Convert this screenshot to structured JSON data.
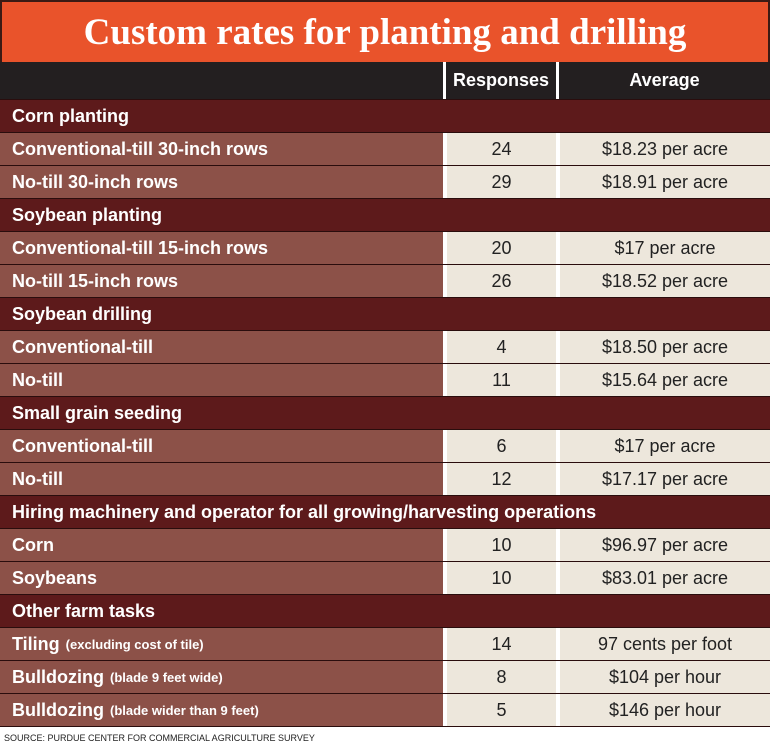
{
  "title": "Custom rates for planting and drilling",
  "header": {
    "responses": "Responses",
    "average": "Average"
  },
  "sections": [
    {
      "name": "Corn planting",
      "rows": [
        {
          "label": "Conventional-till 30-inch rows",
          "responses": 24,
          "average": "$18.23 per acre"
        },
        {
          "label": "No-till 30-inch rows",
          "responses": 29,
          "average": "$18.91 per acre"
        }
      ]
    },
    {
      "name": "Soybean planting",
      "rows": [
        {
          "label": "Conventional-till 15-inch rows",
          "responses": 20,
          "average": "$17 per acre"
        },
        {
          "label": "No-till 15-inch rows",
          "responses": 26,
          "average": "$18.52 per acre"
        }
      ]
    },
    {
      "name": "Soybean drilling",
      "rows": [
        {
          "label": "Conventional-till",
          "responses": 4,
          "average": "$18.50 per acre"
        },
        {
          "label": "No-till",
          "responses": 11,
          "average": "$15.64 per acre"
        }
      ]
    },
    {
      "name": "Small grain seeding",
      "rows": [
        {
          "label": "Conventional-till",
          "responses": 6,
          "average": "$17 per acre"
        },
        {
          "label": "No-till",
          "responses": 12,
          "average": "$17.17 per acre"
        }
      ]
    },
    {
      "name": "Hiring machinery and operator for all growing/harvesting operations",
      "rows": [
        {
          "label": "Corn",
          "responses": 10,
          "average": "$96.97 per acre"
        },
        {
          "label": "Soybeans",
          "responses": 10,
          "average": "$83.01 per acre"
        }
      ]
    },
    {
      "name": "Other farm tasks",
      "rows": [
        {
          "label": "Tiling",
          "note": "(excluding cost of tile)",
          "responses": 14,
          "average": "97 cents per foot"
        },
        {
          "label": "Bulldozing",
          "note": "(blade 9 feet wide)",
          "responses": 8,
          "average": "$104 per hour"
        },
        {
          "label": "Bulldozing",
          "note": "(blade wider than 9 feet)",
          "responses": 5,
          "average": "$146 per hour"
        }
      ]
    }
  ],
  "source": "SOURCE: PURDUE CENTER FOR COMMERCIAL AGRICULTURE SURVEY"
}
